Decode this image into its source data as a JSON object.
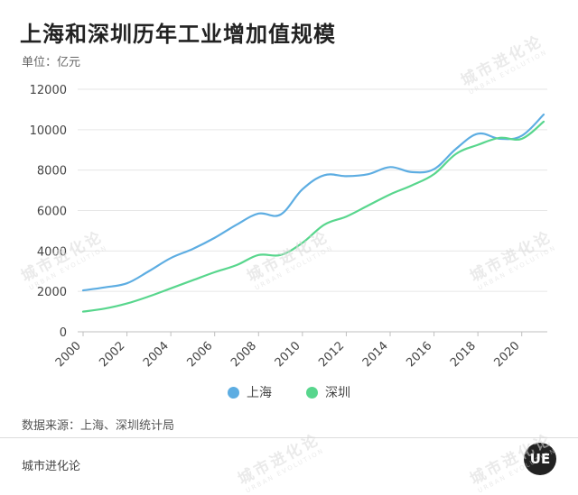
{
  "header": {
    "title": "上海和深圳历年工业增加值规模",
    "unit": "单位：亿元"
  },
  "chart_data": {
    "type": "line",
    "title": "上海和深圳历年工业增加值规模",
    "ylabel": "单位：亿元",
    "xlabel": "",
    "x": [
      2000,
      2001,
      2002,
      2003,
      2004,
      2005,
      2006,
      2007,
      2008,
      2009,
      2010,
      2011,
      2012,
      2013,
      2014,
      2015,
      2016,
      2017,
      2018,
      2019,
      2020,
      2021
    ],
    "xlim": [
      2000,
      2021
    ],
    "xticks": [
      2000,
      2002,
      2004,
      2006,
      2008,
      2010,
      2012,
      2014,
      2016,
      2018,
      2020
    ],
    "ylim": [
      0,
      12000
    ],
    "yticks": [
      0,
      2000,
      4000,
      6000,
      8000,
      10000,
      12000
    ],
    "grid": true,
    "legend_position": "bottom-center",
    "series": [
      {
        "name": "上海",
        "color": "#5dade2",
        "values": [
          2050,
          2200,
          2400,
          3000,
          3650,
          4100,
          4650,
          5300,
          5850,
          5800,
          7050,
          7750,
          7700,
          7800,
          8150,
          7900,
          8050,
          9050,
          9800,
          9550,
          9700,
          10750
        ]
      },
      {
        "name": "深圳",
        "color": "#58d68d",
        "values": [
          1000,
          1150,
          1400,
          1750,
          2150,
          2550,
          2950,
          3300,
          3800,
          3800,
          4400,
          5300,
          5700,
          6250,
          6800,
          7250,
          7800,
          8800,
          9250,
          9600,
          9550,
          10400
        ]
      }
    ]
  },
  "footer": {
    "source": "数据来源：上海、深圳统计局",
    "brand": "城市进化论",
    "logo_text": "UE"
  },
  "watermark": {
    "main": "城市进化论",
    "sub": "URBAN EVOLUTION"
  }
}
